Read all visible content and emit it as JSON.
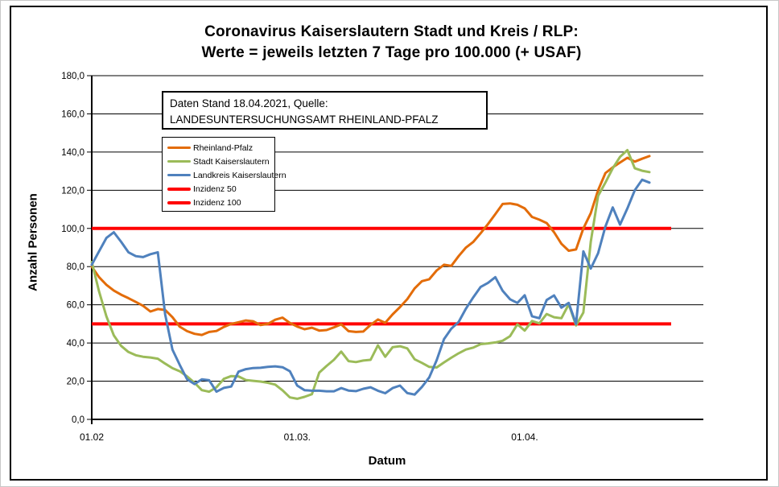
{
  "title": {
    "line1": "Coronavirus Kaiserslautern Stadt und Kreis / RLP:",
    "line2": "Werte = jeweils letzten 7 Tage pro 100.000 (+ USAF)"
  },
  "info_box": {
    "text": "Daten Stand 18.04.2021, Quelle: LANDESUNTERSUCHUNGSAMT RHEINLAND-PFALZ"
  },
  "legend": {
    "items": [
      {
        "label": "Rheinland-Pfalz",
        "color": "#E36C09",
        "thickness": 3
      },
      {
        "label": "Stadt Kaiserslautern",
        "color": "#9BBB59",
        "thickness": 3
      },
      {
        "label": "Landkreis Kaiserslautern",
        "color": "#4F81BD",
        "thickness": 3
      },
      {
        "label": "Inzidenz 50",
        "color": "#FF0000",
        "thickness": 4
      },
      {
        "label": "Inzidenz 100",
        "color": "#FF0000",
        "thickness": 4
      }
    ]
  },
  "chart_data": {
    "type": "line",
    "title": "Coronavirus Kaiserslautern Stadt und Kreis / RLP: Werte = jeweils letzten 7 Tage pro 100.000 (+ USAF)",
    "xlabel": "Datum",
    "ylabel": "Anzahl Personen",
    "ylim": [
      0,
      180
    ],
    "ytick_step": 20,
    "ytick_labels": [
      "0,0",
      "20,0",
      "40,0",
      "60,0",
      "80,0",
      "100,0",
      "120,0",
      "140,0",
      "160,0",
      "180,0"
    ],
    "x_tick_labels": [
      "01.02",
      "01.03.",
      "01.04."
    ],
    "x_tick_days": [
      0,
      28,
      59
    ],
    "days_total": 76,
    "grid": true,
    "legend_position": "upper-left",
    "reference_lines": [
      {
        "name": "Inzidenz 50",
        "value": 50,
        "color": "#FF0000"
      },
      {
        "name": "Inzidenz 100",
        "value": 100,
        "color": "#FF0000"
      }
    ],
    "series": [
      {
        "name": "Rheinland-Pfalz",
        "color": "#E36C09",
        "values": [
          80,
          74.5,
          70.5,
          67.5,
          65.3,
          63.5,
          61.5,
          59.5,
          56.5,
          57.8,
          57.3,
          53.5,
          48.5,
          46.2,
          44.8,
          44.2,
          45.8,
          46.3,
          48.4,
          50,
          50.9,
          51.8,
          51.4,
          49.4,
          50,
          52.2,
          53.3,
          50.5,
          48.6,
          47.2,
          48,
          46.5,
          46.8,
          48.2,
          49.8,
          46.2,
          45.8,
          46,
          49.5,
          52.3,
          50.6,
          55,
          58.8,
          63,
          68.6,
          72.4,
          73.4,
          78,
          81,
          80.4,
          85.5,
          90,
          93,
          97.5,
          102.3,
          107.5,
          112.8,
          113.1,
          112.4,
          110.5,
          106,
          104.6,
          102.8,
          98,
          92,
          88.3,
          89,
          100,
          108,
          120,
          129,
          132,
          134.5,
          137,
          135,
          136.5,
          137.9
        ]
      },
      {
        "name": "Stadt Kaiserslautern",
        "color": "#9BBB59",
        "values": [
          82.5,
          67,
          54,
          44,
          38.5,
          35.3,
          33.6,
          32.8,
          32.4,
          31.8,
          29.2,
          26.8,
          25.2,
          22.5,
          19.2,
          15.3,
          14.5,
          16.8,
          21.2,
          22.7,
          22.5,
          20.6,
          20.2,
          19.8,
          19.2,
          18.2,
          15.2,
          11.5,
          10.8,
          11.8,
          13.2,
          24.5,
          28,
          31.2,
          35.5,
          30.5,
          30,
          30.8,
          31.2,
          38.8,
          32.8,
          37.8,
          38.3,
          37.2,
          31.5,
          29.6,
          27.5,
          27.2,
          29.8,
          32.3,
          34.6,
          36.6,
          37.6,
          39.4,
          39.8,
          40.3,
          41.2,
          43.6,
          49.8,
          46.5,
          51.5,
          50.3,
          55.2,
          53.5,
          53,
          60.3,
          49.2,
          56,
          93,
          117,
          124,
          131.5,
          137.5,
          141,
          131.5,
          130.2,
          129.5
        ]
      },
      {
        "name": "Landkreis Kaiserslautern",
        "color": "#4F81BD",
        "values": [
          81,
          88,
          95,
          98,
          93,
          87.5,
          85.5,
          85,
          86.5,
          87.5,
          55,
          36.5,
          28.5,
          21,
          18.5,
          21,
          20.5,
          14.5,
          16.5,
          17.2,
          25,
          26.3,
          26.9,
          27,
          27.5,
          27.8,
          27.3,
          25.2,
          17.7,
          15.3,
          15,
          15,
          14.7,
          14.7,
          16.4,
          15.1,
          14.8,
          16,
          16.8,
          15,
          13.7,
          16.4,
          17.7,
          13.8,
          13,
          17,
          22,
          31,
          42,
          47.5,
          51,
          58,
          64,
          69.4,
          71.5,
          74.5,
          67.3,
          62.9,
          61,
          65,
          54,
          53,
          62.5,
          64.9,
          58.5,
          61,
          50,
          88,
          79,
          87,
          101,
          111,
          102,
          110.5,
          120,
          125.5,
          124
        ]
      }
    ]
  }
}
